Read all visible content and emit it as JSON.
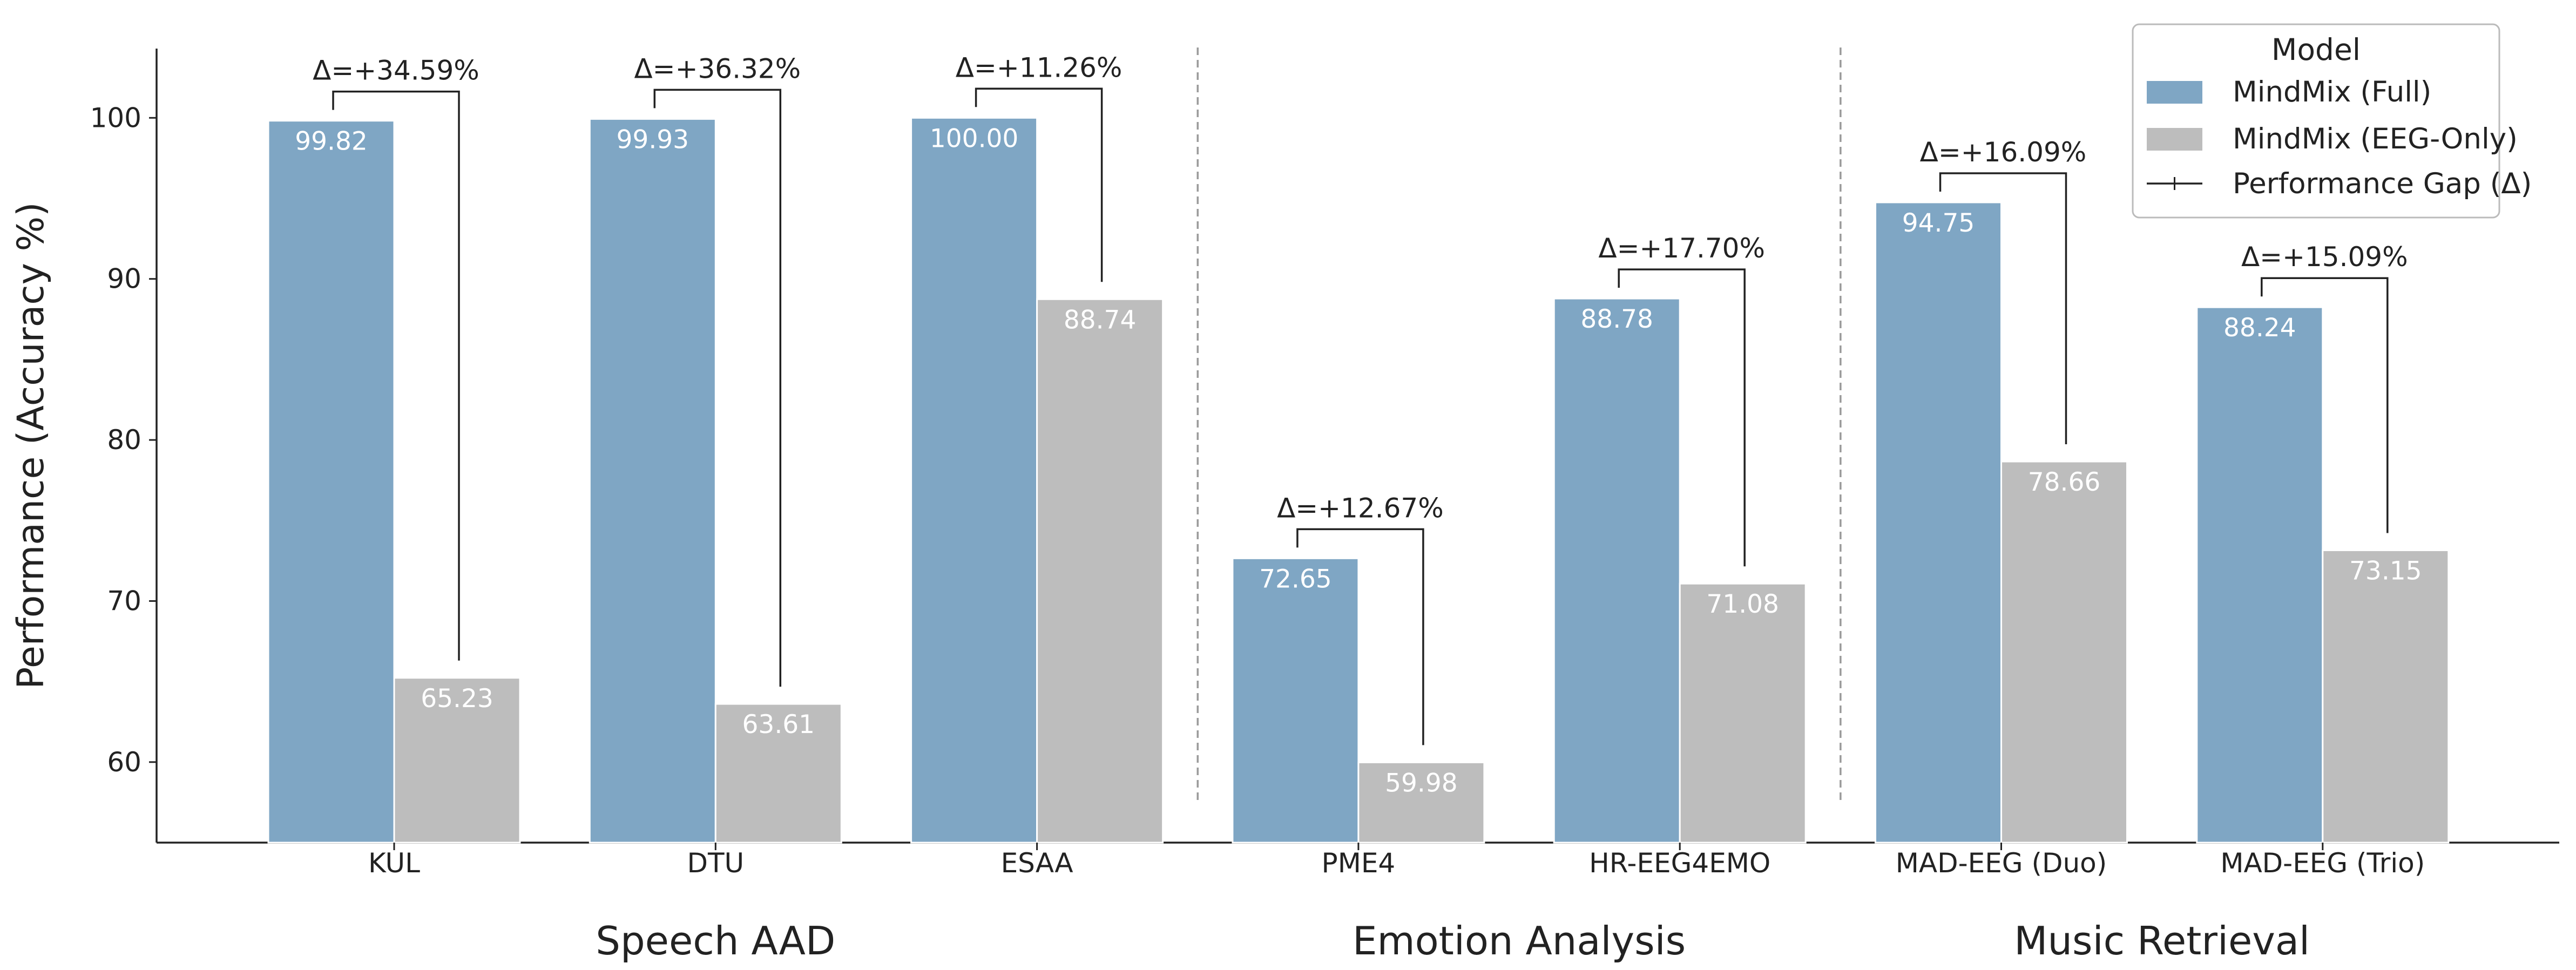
{
  "chart_data": {
    "type": "bar",
    "title": "",
    "xlabel": "",
    "ylabel": "Performance (Accuracy %)",
    "ylim": [
      55,
      104.3
    ],
    "yticks": [
      60,
      70,
      80,
      90,
      100
    ],
    "grid": false,
    "categories": [
      "KUL",
      "DTU",
      "ESAA",
      "PME4",
      "HR-EEG4EMO",
      "MAD-EEG (Duo)",
      "MAD-EEG (Trio)"
    ],
    "groups": [
      {
        "label": "Speech AAD",
        "categories": [
          "KUL",
          "DTU",
          "ESAA"
        ]
      },
      {
        "label": "Emotion Analysis",
        "categories": [
          "PME4",
          "HR-EEG4EMO"
        ]
      },
      {
        "label": "Music Retrieval",
        "categories": [
          "MAD-EEG (Duo)",
          "MAD-EEG (Trio)"
        ]
      }
    ],
    "series": [
      {
        "name": "MindMix (Full)",
        "color": "#7fa6c4",
        "values": [
          99.82,
          99.93,
          100.0,
          72.65,
          88.78,
          94.75,
          88.24
        ],
        "labels": [
          "99.82",
          "99.93",
          "100.00",
          "72.65",
          "88.78",
          "94.75",
          "88.24"
        ]
      },
      {
        "name": "MindMix (EEG-Only)",
        "color": "#bdbdbd",
        "values": [
          65.23,
          63.61,
          88.74,
          59.98,
          71.08,
          78.66,
          73.15
        ],
        "labels": [
          "65.23",
          "63.61",
          "88.74",
          "59.98",
          "71.08",
          "78.66",
          "73.15"
        ]
      }
    ],
    "gaps": [
      "Δ=+34.59%",
      "Δ=+36.32%",
      "Δ=+11.26%",
      "Δ=+12.67%",
      "Δ=+17.70%",
      "Δ=+16.09%",
      "Δ=+15.09%"
    ],
    "legend": {
      "title": "Model",
      "position": "top-right",
      "entries": [
        "MindMix (Full)",
        "MindMix (EEG-Only)",
        "Performance Gap (Δ)"
      ]
    }
  }
}
